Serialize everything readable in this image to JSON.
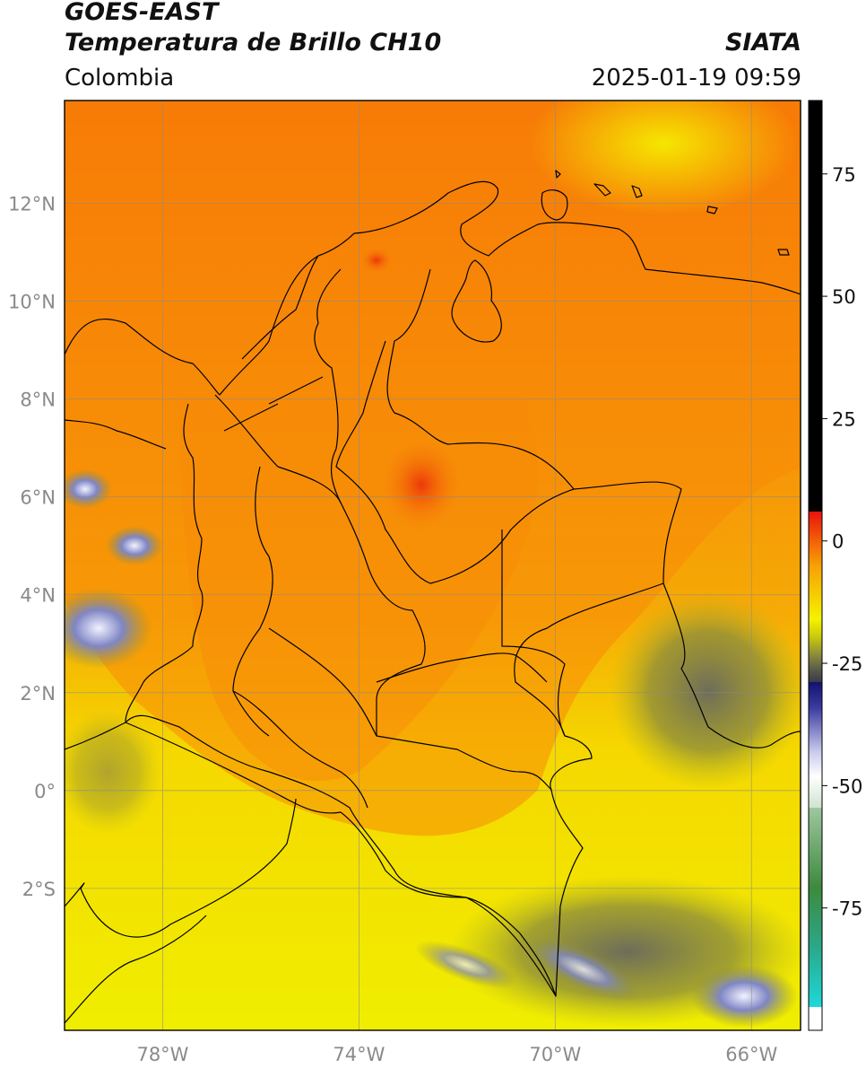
{
  "header": {
    "title_line1": "GOES-EAST",
    "title_line2": "Temperatura de Brillo CH10",
    "region": "Colombia",
    "agency": "SIATA",
    "datetime": "2025-01-19 09:59"
  },
  "map": {
    "lon_range": [
      -80,
      -65
    ],
    "lat_range": [
      -4.9,
      14.1
    ],
    "lon_ticks": [
      {
        "value": -78,
        "label": "78°W"
      },
      {
        "value": -74,
        "label": "74°W"
      },
      {
        "value": -70,
        "label": "70°W"
      },
      {
        "value": -66,
        "label": "66°W"
      }
    ],
    "lat_ticks": [
      {
        "value": 12,
        "label": "12°N"
      },
      {
        "value": 10,
        "label": "10°N"
      },
      {
        "value": 8,
        "label": "8°N"
      },
      {
        "value": 6,
        "label": "6°N"
      },
      {
        "value": 4,
        "label": "4°N"
      },
      {
        "value": 2,
        "label": "2°N"
      },
      {
        "value": 0,
        "label": "0°"
      },
      {
        "value": -2,
        "label": "2°S"
      }
    ],
    "grid": true
  },
  "colorbar": {
    "range": [
      -100,
      90
    ],
    "ticks": [
      {
        "value": 75,
        "label": "75"
      },
      {
        "value": 50,
        "label": "50"
      },
      {
        "value": 25,
        "label": "25"
      },
      {
        "value": 0,
        "label": "0"
      },
      {
        "value": -25,
        "label": "-25"
      },
      {
        "value": -50,
        "label": "-50"
      },
      {
        "value": -75,
        "label": "-75"
      }
    ],
    "colors": {
      "black": "#000000",
      "red": "#e8130b",
      "orange": "#f77a08",
      "yellow": "#f5f200",
      "olive": "#8f8f3a",
      "navy": "#1a1a80",
      "white": "#ffffff",
      "green": "#3d8a3d",
      "cyan": "#1ed9d9"
    }
  }
}
